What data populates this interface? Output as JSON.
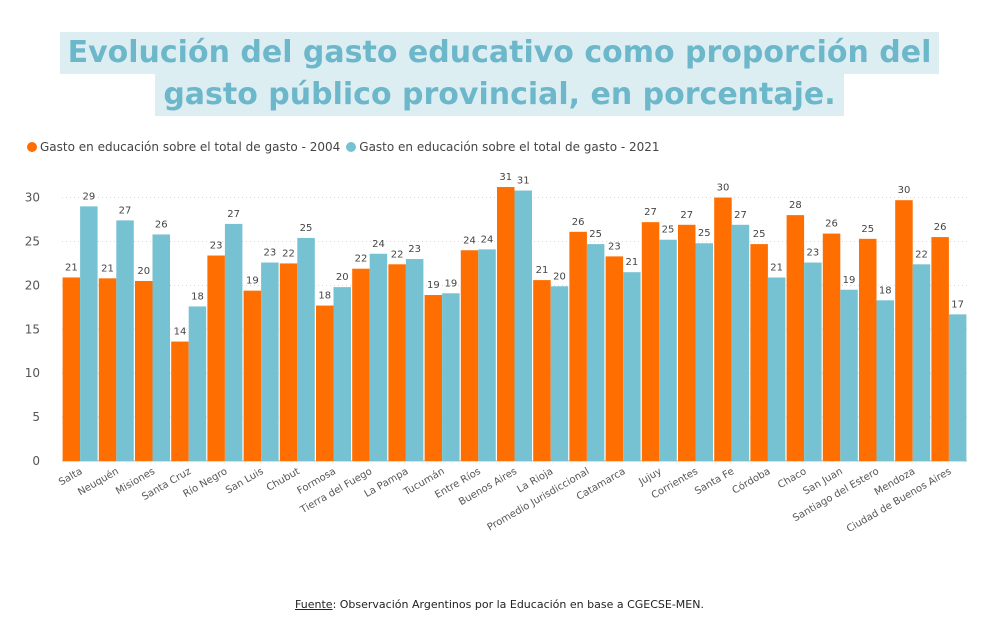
{
  "title_line1": "Evolución del gasto educativo como proporción del",
  "title_line2": "gasto público provincial, en porcentaje.",
  "source_label": "Fuente",
  "source_text": ": Observación Argentinos por la Educación en base a CGECSE-MEN.",
  "chart_data": {
    "type": "bar",
    "ylim": [
      0,
      32
    ],
    "yticks": [
      "0",
      "5",
      "10",
      "15",
      "20",
      "25",
      "30"
    ],
    "grid": true,
    "legend_position": "top-left",
    "categories": [
      "Salta",
      "Neuquén",
      "Misiones",
      "Santa Cruz",
      "Río Negro",
      "San Luis",
      "Chubut",
      "Formosa",
      "Tierra del Fuego",
      "La Pampa",
      "Tucumán",
      "Entre Ríos",
      "Buenos Aires",
      "La Rioja",
      "Promedio Jurisdiccional",
      "Catamarca",
      "Jujuy",
      "Corrientes",
      "Santa Fe",
      "Córdoba",
      "Chaco",
      "San Juan",
      "Santiago del Estero",
      "Mendoza",
      "Ciudad de Buenos Aires"
    ],
    "series": [
      {
        "name": "Gasto en educación sobre el total de gasto - 2004",
        "color": "#ff6e00",
        "values": [
          20.9,
          20.8,
          20.5,
          13.6,
          23.4,
          19.4,
          22.5,
          17.7,
          21.9,
          22.4,
          18.9,
          24.0,
          31.2,
          20.6,
          26.1,
          23.3,
          27.2,
          26.9,
          30.0,
          24.7,
          28.0,
          25.9,
          25.3,
          29.7,
          25.5
        ]
      },
      {
        "name": "Gasto en educación sobre el total de gasto - 2021",
        "color": "#77c2d2",
        "values": [
          29.0,
          27.4,
          25.8,
          17.6,
          27.0,
          22.6,
          25.4,
          19.8,
          23.6,
          23.0,
          19.1,
          24.1,
          30.8,
          19.9,
          24.7,
          21.5,
          25.2,
          24.8,
          26.9,
          20.9,
          22.6,
          19.5,
          18.3,
          22.4,
          16.7
        ]
      }
    ],
    "labels": [
      [
        "21",
        "21",
        "20",
        "14",
        "23",
        "19",
        "22",
        "18",
        "22",
        "22",
        "19",
        "24",
        "31",
        "21",
        "26",
        "23",
        "27",
        "27",
        "30",
        "25",
        "28",
        "26",
        "25",
        "30",
        "26"
      ],
      [
        "29",
        "27",
        "26",
        "18",
        "27",
        "23",
        "25",
        "20",
        "24",
        "23",
        "19",
        "24",
        "31",
        "20",
        "25",
        "21",
        "25",
        "25",
        "27",
        "21",
        "23",
        "19",
        "18",
        "22",
        "17"
      ]
    ]
  }
}
